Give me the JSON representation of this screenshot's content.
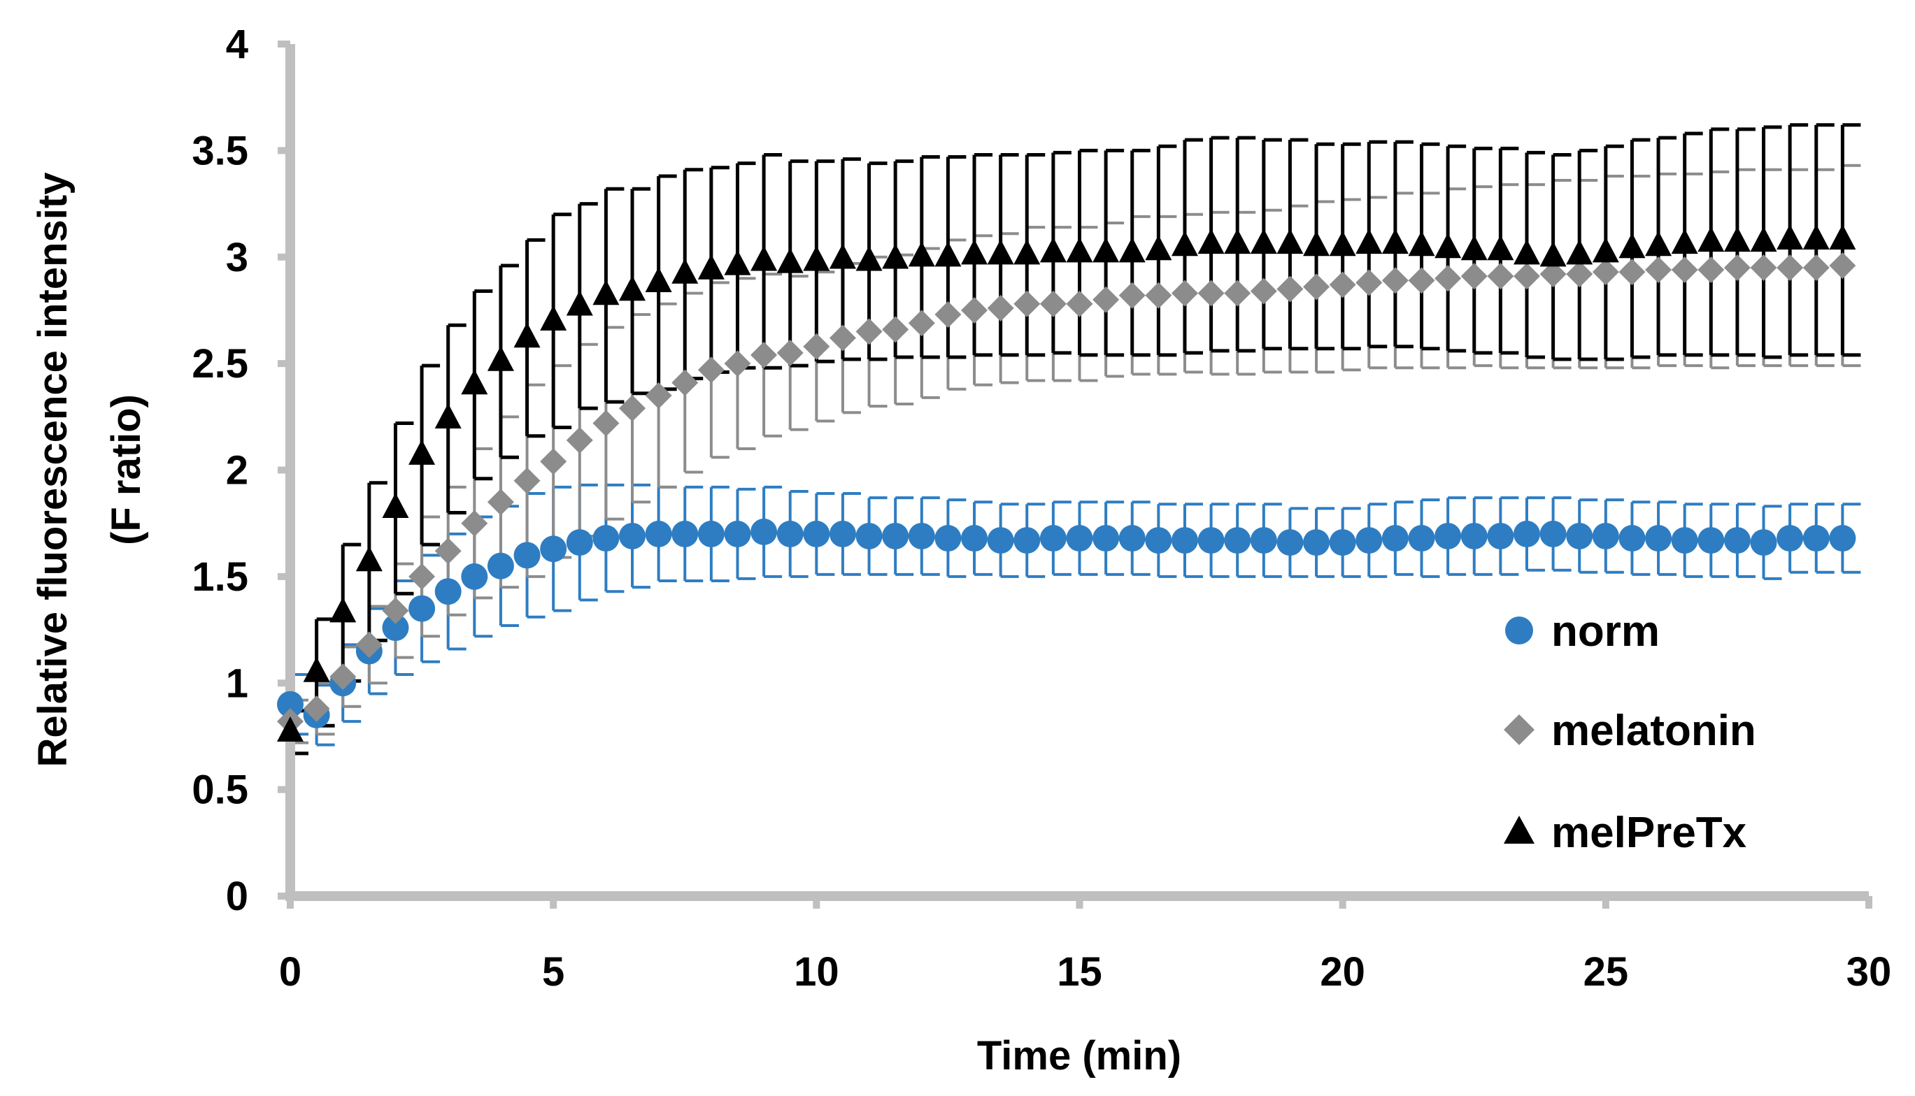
{
  "chart_data": {
    "type": "scatter",
    "title": "",
    "xlabel": "Time (min)",
    "ylabel_line1": "Relative fluorescence intensity",
    "ylabel_line2": "(F ratio)",
    "xlim": [
      0,
      30
    ],
    "ylim": [
      0,
      4
    ],
    "xticks": [
      0,
      5,
      10,
      15,
      20,
      25,
      30
    ],
    "xtick_labels": [
      "0",
      "5",
      "10",
      "15",
      "20",
      "25",
      "30"
    ],
    "yticks": [
      0,
      0.5,
      1,
      1.5,
      2,
      2.5,
      3,
      3.5,
      4
    ],
    "ytick_labels": [
      "0",
      "0.5",
      "1",
      "1.5",
      "2",
      "2.5",
      "3",
      "3.5",
      "4"
    ],
    "grid": false,
    "legend_position": "bottom-right",
    "x": [
      0,
      0.5,
      1,
      1.5,
      2,
      2.5,
      3,
      3.5,
      4,
      4.5,
      5,
      5.5,
      6,
      6.5,
      7,
      7.5,
      8,
      8.5,
      9,
      9.5,
      10,
      10.5,
      11,
      11.5,
      12,
      12.5,
      13,
      13.5,
      14,
      14.5,
      15,
      15.5,
      16,
      16.5,
      17,
      17.5,
      18,
      18.5,
      19,
      19.5,
      20,
      20.5,
      21,
      21.5,
      22,
      22.5,
      23,
      23.5,
      24,
      24.5,
      25,
      25.5,
      26,
      26.5,
      27,
      27.5,
      28,
      28.5,
      29,
      29.5
    ],
    "series": [
      {
        "name": "norm",
        "marker": "circle",
        "color": "#2e7dc2",
        "values": [
          0.9,
          0.85,
          1.0,
          1.15,
          1.26,
          1.35,
          1.43,
          1.5,
          1.55,
          1.6,
          1.63,
          1.66,
          1.68,
          1.69,
          1.7,
          1.7,
          1.7,
          1.7,
          1.71,
          1.7,
          1.7,
          1.7,
          1.69,
          1.69,
          1.69,
          1.68,
          1.68,
          1.67,
          1.67,
          1.68,
          1.68,
          1.68,
          1.68,
          1.67,
          1.67,
          1.67,
          1.67,
          1.67,
          1.66,
          1.66,
          1.66,
          1.67,
          1.68,
          1.68,
          1.69,
          1.69,
          1.69,
          1.7,
          1.7,
          1.69,
          1.69,
          1.68,
          1.68,
          1.67,
          1.67,
          1.67,
          1.66,
          1.68,
          1.68,
          1.68
        ],
        "errors": [
          0.14,
          0.14,
          0.18,
          0.2,
          0.22,
          0.25,
          0.27,
          0.28,
          0.28,
          0.29,
          0.29,
          0.27,
          0.25,
          0.24,
          0.22,
          0.22,
          0.22,
          0.21,
          0.21,
          0.2,
          0.19,
          0.19,
          0.18,
          0.18,
          0.18,
          0.18,
          0.17,
          0.17,
          0.17,
          0.17,
          0.17,
          0.17,
          0.17,
          0.17,
          0.17,
          0.17,
          0.17,
          0.17,
          0.16,
          0.16,
          0.16,
          0.17,
          0.17,
          0.18,
          0.18,
          0.18,
          0.18,
          0.17,
          0.17,
          0.17,
          0.17,
          0.17,
          0.17,
          0.17,
          0.17,
          0.17,
          0.17,
          0.16,
          0.16,
          0.16
        ]
      },
      {
        "name": "melatonin",
        "marker": "diamond",
        "color": "#8c8c8c",
        "values": [
          0.82,
          0.88,
          1.03,
          1.18,
          1.34,
          1.5,
          1.62,
          1.75,
          1.85,
          1.95,
          2.04,
          2.14,
          2.22,
          2.29,
          2.35,
          2.41,
          2.47,
          2.5,
          2.54,
          2.55,
          2.58,
          2.62,
          2.65,
          2.66,
          2.69,
          2.73,
          2.75,
          2.76,
          2.78,
          2.78,
          2.78,
          2.8,
          2.82,
          2.82,
          2.83,
          2.83,
          2.83,
          2.84,
          2.85,
          2.86,
          2.87,
          2.88,
          2.89,
          2.89,
          2.9,
          2.91,
          2.91,
          2.91,
          2.92,
          2.92,
          2.93,
          2.93,
          2.94,
          2.94,
          2.94,
          2.95,
          2.95,
          2.95,
          2.95,
          2.96
        ],
        "errors": [
          0.1,
          0.12,
          0.14,
          0.18,
          0.22,
          0.28,
          0.3,
          0.35,
          0.4,
          0.45,
          0.45,
          0.45,
          0.45,
          0.44,
          0.43,
          0.42,
          0.41,
          0.4,
          0.38,
          0.36,
          0.35,
          0.35,
          0.35,
          0.35,
          0.35,
          0.35,
          0.35,
          0.35,
          0.36,
          0.36,
          0.36,
          0.36,
          0.37,
          0.37,
          0.37,
          0.38,
          0.38,
          0.38,
          0.39,
          0.4,
          0.4,
          0.4,
          0.41,
          0.41,
          0.42,
          0.42,
          0.43,
          0.43,
          0.44,
          0.44,
          0.45,
          0.45,
          0.45,
          0.45,
          0.46,
          0.46,
          0.46,
          0.46,
          0.46,
          0.47
        ]
      },
      {
        "name": "melPreTx",
        "marker": "triangle",
        "color": "#000000",
        "values": [
          0.77,
          1.05,
          1.33,
          1.57,
          1.82,
          2.07,
          2.24,
          2.4,
          2.51,
          2.62,
          2.7,
          2.77,
          2.82,
          2.84,
          2.88,
          2.92,
          2.94,
          2.96,
          2.98,
          2.97,
          2.98,
          2.99,
          2.98,
          2.99,
          3.0,
          3.0,
          3.01,
          3.01,
          3.01,
          3.02,
          3.02,
          3.02,
          3.02,
          3.03,
          3.05,
          3.06,
          3.06,
          3.06,
          3.06,
          3.05,
          3.05,
          3.06,
          3.06,
          3.05,
          3.04,
          3.03,
          3.03,
          3.01,
          3.0,
          3.01,
          3.02,
          3.04,
          3.05,
          3.06,
          3.07,
          3.07,
          3.07,
          3.08,
          3.08,
          3.08
        ],
        "errors": [
          0.1,
          0.25,
          0.32,
          0.37,
          0.4,
          0.42,
          0.44,
          0.44,
          0.45,
          0.46,
          0.5,
          0.48,
          0.5,
          0.48,
          0.5,
          0.49,
          0.48,
          0.48,
          0.5,
          0.48,
          0.47,
          0.47,
          0.46,
          0.46,
          0.47,
          0.47,
          0.47,
          0.47,
          0.47,
          0.47,
          0.48,
          0.48,
          0.48,
          0.49,
          0.5,
          0.5,
          0.5,
          0.49,
          0.49,
          0.48,
          0.48,
          0.48,
          0.48,
          0.48,
          0.48,
          0.48,
          0.48,
          0.48,
          0.48,
          0.49,
          0.5,
          0.51,
          0.51,
          0.52,
          0.53,
          0.53,
          0.54,
          0.54,
          0.54,
          0.54
        ]
      }
    ]
  }
}
